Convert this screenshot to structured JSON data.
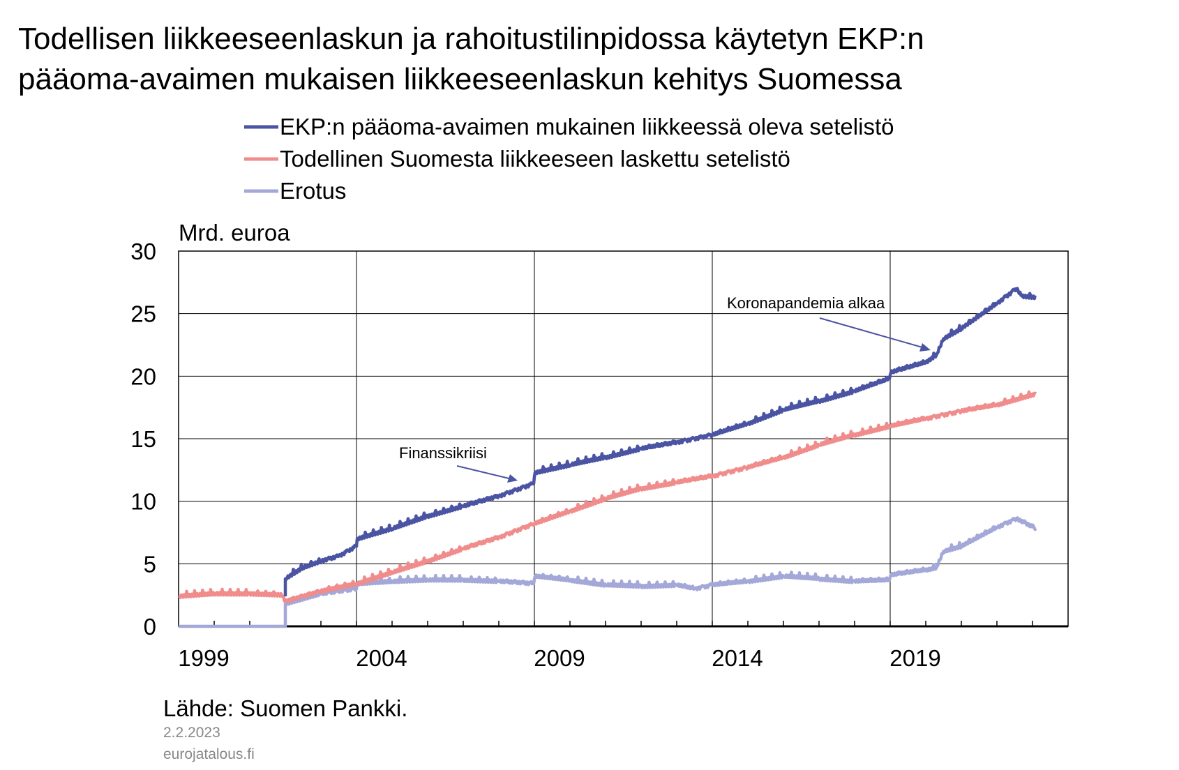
{
  "chart_data": {
    "type": "line",
    "title": "Todellisen liikkeeseenlaskun ja rahoitustilinpidossa käytetyn EKP:n pääoma-avaimen mukaisen liikkeeseenlaskun kehitys Suomessa",
    "title_lines": [
      "Todellisen liikkeeseenlaskun ja rahoitustilinpidossa käytetyn EKP:n",
      "pääoma-avaimen mukaisen liikkeeseenlaskun kehitys Suomessa"
    ],
    "ylabel": "Mrd. euroa",
    "xlabel": "",
    "ylim": [
      0,
      30
    ],
    "xlim": [
      1999,
      2024
    ],
    "yticks": [
      0,
      5,
      10,
      15,
      20,
      25,
      30
    ],
    "xtick_labels": [
      "1999",
      "2004",
      "2009",
      "2014",
      "2019"
    ],
    "grid": true,
    "legend_placement": "top",
    "series": [
      {
        "name": "EKP:n pääoma-avaimen mukainen liikkeessä oleva setelistö",
        "color": "#4b53a3",
        "x": [
          2002.0,
          2002.0,
          2002.5,
          2003.0,
          2003.5,
          2004.0,
          2004.02,
          2005.0,
          2006.0,
          2007.0,
          2008.0,
          2008.98,
          2009.02,
          2010.0,
          2011.0,
          2012.0,
          2013.0,
          2014.0,
          2015.0,
          2016.0,
          2017.0,
          2018.0,
          2018.98,
          2019.02,
          2020.0,
          2020.3,
          2020.5,
          2021.0,
          2022.0,
          2022.55,
          2022.7,
          2023.1
        ],
        "y": [
          2.4,
          3.8,
          4.7,
          5.2,
          5.6,
          6.4,
          7.0,
          7.8,
          8.8,
          9.6,
          10.4,
          11.4,
          12.3,
          12.9,
          13.5,
          14.2,
          14.7,
          15.3,
          16.2,
          17.3,
          18.0,
          18.8,
          19.8,
          20.3,
          21.1,
          21.7,
          23.0,
          23.8,
          25.8,
          27.0,
          26.4,
          26.3
        ]
      },
      {
        "name": "Todellinen Suomesta liikkeeseen laskettu setelistö",
        "color": "#f08c8c",
        "x": [
          1999.0,
          2000.0,
          2001.0,
          2001.9,
          2002.0,
          2003.0,
          2004.0,
          2005.0,
          2006.0,
          2007.0,
          2008.0,
          2009.0,
          2010.0,
          2011.0,
          2012.0,
          2013.0,
          2014.0,
          2015.0,
          2016.0,
          2017.0,
          2018.0,
          2019.0,
          2020.0,
          2021.0,
          2022.0,
          2023.1
        ],
        "y": [
          2.4,
          2.6,
          2.6,
          2.5,
          2.0,
          2.8,
          3.4,
          4.3,
          5.2,
          6.2,
          7.1,
          8.2,
          9.2,
          10.2,
          11.0,
          11.5,
          12.0,
          12.7,
          13.5,
          14.5,
          15.3,
          16.0,
          16.6,
          17.2,
          17.7,
          18.6
        ]
      },
      {
        "name": "Erotus",
        "color": "#a3a8d8",
        "x": [
          1999.0,
          2002.0,
          2002.0,
          2003.0,
          2004.0,
          2004.02,
          2005.0,
          2006.0,
          2007.0,
          2008.0,
          2008.98,
          2009.02,
          2010.0,
          2011.0,
          2012.0,
          2013.0,
          2013.5,
          2014.0,
          2015.0,
          2016.0,
          2017.0,
          2018.0,
          2018.98,
          2019.02,
          2020.0,
          2020.3,
          2020.5,
          2021.0,
          2022.0,
          2022.55,
          2023.1
        ],
        "y": [
          0,
          0,
          1.8,
          2.6,
          3.0,
          3.4,
          3.6,
          3.7,
          3.7,
          3.6,
          3.4,
          4.0,
          3.7,
          3.3,
          3.2,
          3.3,
          3.0,
          3.3,
          3.6,
          4.0,
          3.8,
          3.6,
          3.7,
          4.1,
          4.5,
          4.7,
          6.0,
          6.4,
          7.9,
          8.6,
          7.8
        ]
      }
    ],
    "annotations": [
      {
        "text": "Finanssikriisi",
        "x": 2008.8,
        "y": 11.7
      },
      {
        "text": "Koronapandemia alkaa",
        "x": 2020.2,
        "y": 22.0
      }
    ]
  },
  "footer": {
    "source": "Lähde: Suomen Pankki.",
    "date": "2.2.2023",
    "site": "eurojatalous.fi"
  }
}
